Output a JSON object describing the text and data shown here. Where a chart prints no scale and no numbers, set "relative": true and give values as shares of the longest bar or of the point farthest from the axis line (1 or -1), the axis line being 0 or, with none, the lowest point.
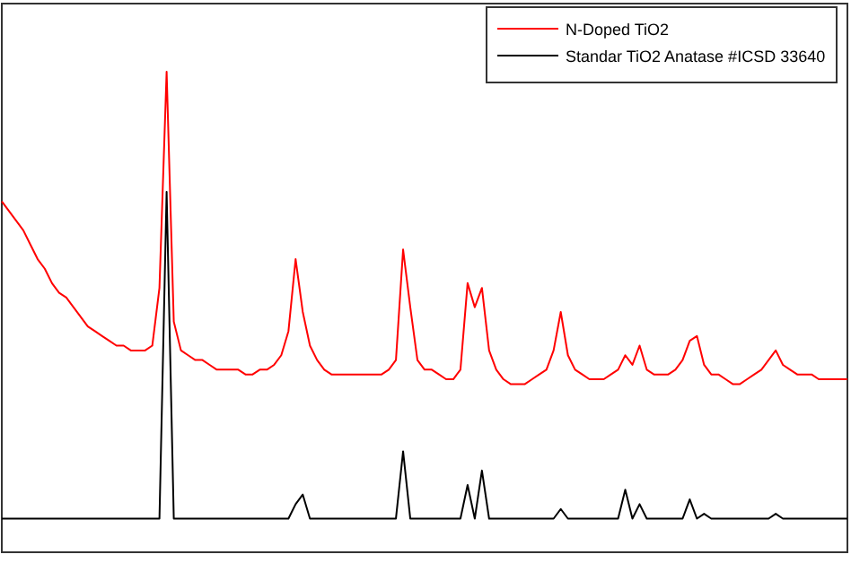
{
  "chart_data": {
    "type": "line",
    "relative": true,
    "legend": "top right",
    "marker": "none",
    "line_style": "solid",
    "categories": [
      null,
      null,
      null,
      null,
      null,
      null,
      null,
      null,
      null,
      null,
      null,
      null,
      null,
      null,
      null,
      null,
      null,
      null,
      null,
      null,
      null,
      null,
      null,
      null,
      null,
      null,
      null,
      null,
      null,
      null,
      null,
      null,
      null,
      null,
      null,
      null,
      null,
      null,
      null,
      null,
      null,
      null,
      null,
      null,
      null,
      null,
      null,
      null,
      null,
      null,
      null,
      null,
      null,
      null,
      null,
      null,
      null,
      null,
      null,
      null,
      null,
      null,
      null,
      null,
      null,
      null,
      null,
      null,
      null,
      null,
      null,
      null,
      null,
      null,
      null,
      null,
      null,
      null,
      null,
      null,
      null,
      null,
      null,
      null,
      null,
      null,
      null,
      null,
      null,
      null,
      null,
      null,
      null,
      null,
      null,
      null,
      null,
      null,
      null,
      null,
      null,
      null,
      null,
      null,
      null,
      null,
      null,
      null,
      null,
      null,
      null,
      null,
      null,
      null,
      null,
      null,
      null,
      null,
      null
    ],
    "series": [
      {
        "name": "N-Doped TiO2",
        "color": "#ff0000",
        "values": [
          0.73,
          0.71,
          0.69,
          0.67,
          0.64,
          0.61,
          0.59,
          0.56,
          0.54,
          0.53,
          0.51,
          0.49,
          0.47,
          0.46,
          0.45,
          0.44,
          0.43,
          0.43,
          0.42,
          0.42,
          0.42,
          0.43,
          0.55,
          1,
          0.48,
          0.42,
          0.41,
          0.4,
          0.4,
          0.39,
          0.38,
          0.38,
          0.38,
          0.38,
          0.37,
          0.37,
          0.38,
          0.38,
          0.39,
          0.41,
          0.46,
          0.61,
          0.5,
          0.43,
          0.4,
          0.38,
          0.37,
          0.37,
          0.37,
          0.37,
          0.37,
          0.37,
          0.37,
          0.37,
          0.38,
          0.4,
          0.63,
          0.51,
          0.4,
          0.38,
          0.38,
          0.37,
          0.36,
          0.36,
          0.38,
          0.56,
          0.51,
          0.55,
          0.42,
          0.38,
          0.36,
          0.35,
          0.35,
          0.35,
          0.36,
          0.37,
          0.38,
          0.42,
          0.5,
          0.41,
          0.38,
          0.37,
          0.36,
          0.36,
          0.36,
          0.37,
          0.38,
          0.41,
          0.39,
          0.43,
          0.38,
          0.37,
          0.37,
          0.37,
          0.38,
          0.4,
          0.44,
          0.45,
          0.39,
          0.37,
          0.37,
          0.36,
          0.35,
          0.35,
          0.36,
          0.37,
          0.38,
          0.4,
          0.42,
          0.39,
          0.38,
          0.37,
          0.37,
          0.37,
          0.36,
          0.36,
          0.36,
          0.36,
          0.36
        ]
      },
      {
        "name": "Standar TiO2 Anatase #ICSD 33640",
        "color": "#000000",
        "values": [
          0.07,
          0.07,
          0.07,
          0.07,
          0.07,
          0.07,
          0.07,
          0.07,
          0.07,
          0.07,
          0.07,
          0.07,
          0.07,
          0.07,
          0.07,
          0.07,
          0.07,
          0.07,
          0.07,
          0.07,
          0.07,
          0.07,
          0.07,
          0.75,
          0.07,
          0.07,
          0.07,
          0.07,
          0.07,
          0.07,
          0.07,
          0.07,
          0.07,
          0.07,
          0.07,
          0.07,
          0.07,
          0.07,
          0.07,
          0.07,
          0.07,
          0.1,
          0.12,
          0.07,
          0.07,
          0.07,
          0.07,
          0.07,
          0.07,
          0.07,
          0.07,
          0.07,
          0.07,
          0.07,
          0.07,
          0.07,
          0.21,
          0.07,
          0.07,
          0.07,
          0.07,
          0.07,
          0.07,
          0.07,
          0.07,
          0.14,
          0.07,
          0.17,
          0.07,
          0.07,
          0.07,
          0.07,
          0.07,
          0.07,
          0.07,
          0.07,
          0.07,
          0.07,
          0.09,
          0.07,
          0.07,
          0.07,
          0.07,
          0.07,
          0.07,
          0.07,
          0.07,
          0.13,
          0.07,
          0.1,
          0.07,
          0.07,
          0.07,
          0.07,
          0.07,
          0.07,
          0.11,
          0.07,
          0.08,
          0.07,
          0.07,
          0.07,
          0.07,
          0.07,
          0.07,
          0.07,
          0.07,
          0.07,
          0.08,
          0.07,
          0.07,
          0.07,
          0.07,
          0.07,
          0.07,
          0.07,
          0.07,
          0.07,
          0.07
        ]
      }
    ]
  }
}
